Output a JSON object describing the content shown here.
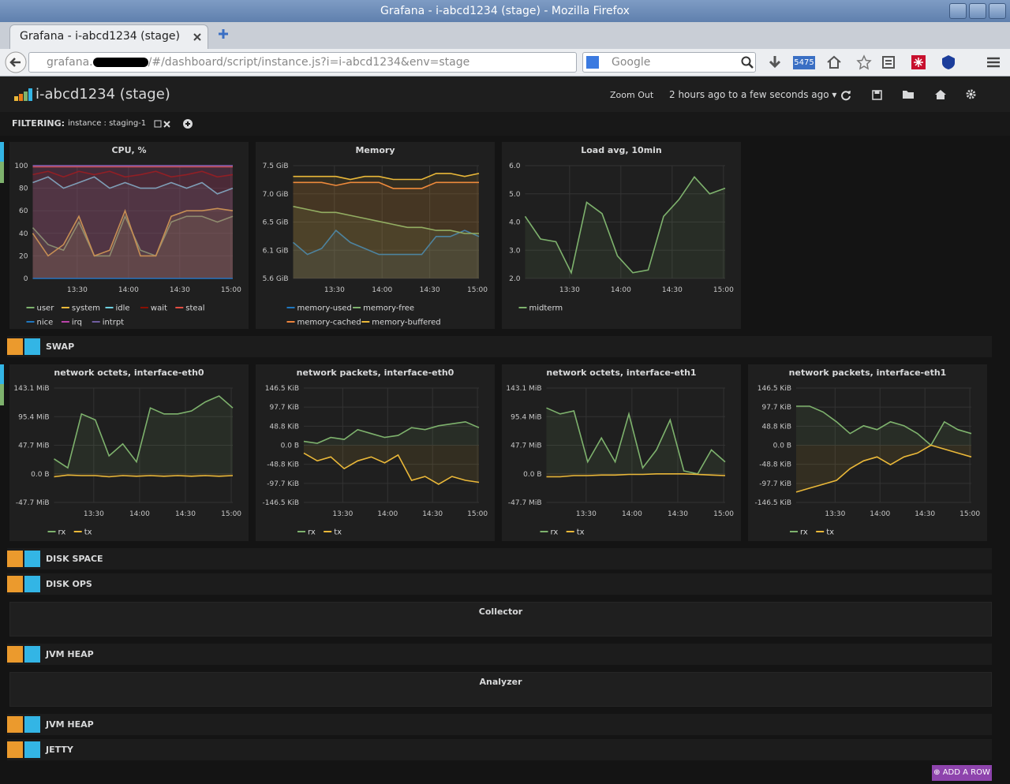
{
  "window": {
    "title": "Grafana - i-abcd1234 (stage) - Mozilla Firefox"
  },
  "tab": {
    "title": "Grafana - i-abcd1234 (stage)"
  },
  "url": {
    "host": "grafana.",
    "path": "/#/dashboard/script/instance.js?i=i-abcd1234&env=stage"
  },
  "search": {
    "placeholder": "Google"
  },
  "toolbar": {
    "badge": "5475"
  },
  "dashboard": {
    "title": "i-abcd1234 (stage)",
    "zoom_out": "Zoom Out",
    "time_range": "2 hours ago to a few seconds ago",
    "filtering": {
      "label": "FILTERING:",
      "tag": "instance : staging-1"
    },
    "add_row": "ADD A ROW"
  },
  "rows": [
    {
      "panels": [
        {
          "type": "line",
          "title": "CPU, %",
          "x": [
            "13:04",
            "13:13",
            "13:22",
            "13:31",
            "13:40",
            "13:49",
            "13:58",
            "14:07",
            "14:16",
            "14:25",
            "14:34",
            "14:43",
            "14:52",
            "15:01"
          ],
          "xlim": [
            "13:04",
            "15:01"
          ],
          "xticks": [
            "13:30",
            "14:00",
            "14:30",
            "15:00"
          ],
          "ylim": [
            0,
            100
          ],
          "yticks": [
            100,
            80,
            60,
            40,
            20,
            0
          ],
          "grid": true,
          "series": [
            {
              "name": "user",
              "color": "#7eb26d",
              "values": [
                45,
                30,
                25,
                50,
                20,
                20,
                55,
                25,
                20,
                50,
                55,
                55,
                50,
                55
              ]
            },
            {
              "name": "system",
              "color": "#eab839",
              "values": [
                40,
                20,
                30,
                55,
                20,
                25,
                60,
                20,
                20,
                55,
                60,
                60,
                62,
                60
              ]
            },
            {
              "name": "idle",
              "color": "#6ed0e0",
              "values": [
                85,
                90,
                80,
                85,
                90,
                80,
                85,
                80,
                80,
                85,
                80,
                85,
                75,
                80
              ]
            },
            {
              "name": "wait",
              "color": "#890f02",
              "values": [
                92,
                95,
                90,
                95,
                92,
                95,
                90,
                92,
                95,
                90,
                92,
                95,
                90,
                92
              ]
            },
            {
              "name": "steal",
              "color": "#e24d42",
              "values": [
                99,
                99,
                99,
                99,
                99,
                99,
                99,
                99,
                99,
                99,
                99,
                99,
                99,
                99
              ]
            },
            {
              "name": "nice",
              "color": "#1f78c1",
              "values": [
                0,
                0,
                0,
                0,
                0,
                0,
                0,
                0,
                0,
                0,
                0,
                0,
                0,
                0
              ]
            },
            {
              "name": "irq",
              "color": "#ba43a9",
              "values": [
                100,
                100,
                100,
                100,
                100,
                100,
                100,
                100,
                100,
                100,
                100,
                100,
                100,
                100
              ]
            },
            {
              "name": "intrpt",
              "color": "#705da0",
              "values": [
                100,
                100,
                100,
                100,
                100,
                100,
                100,
                100,
                100,
                100,
                100,
                100,
                100,
                100
              ]
            }
          ]
        },
        {
          "type": "line",
          "title": "Memory",
          "x": [
            "13:04",
            "13:13",
            "13:22",
            "13:31",
            "13:40",
            "13:49",
            "13:58",
            "14:07",
            "14:16",
            "14:25",
            "14:34",
            "14:43",
            "14:52",
            "15:01"
          ],
          "xlim": [
            "13:04",
            "15:01"
          ],
          "xticks": [
            "13:30",
            "14:00",
            "14:30",
            "15:00"
          ],
          "ylim": [
            5.6,
            7.48
          ],
          "grid": true,
          "yticks": [
            {
              "value": 7.48,
              "label": "7.5 GiB"
            },
            {
              "value": 7.01,
              "label": "7.0 GiB"
            },
            {
              "value": 6.54,
              "label": "6.5 GiB"
            },
            {
              "value": 6.07,
              "label": "6.1 GiB"
            },
            {
              "value": 5.6,
              "label": "5.6 GiB"
            }
          ],
          "series": [
            {
              "name": "memory-used",
              "color": "#1f78c1",
              "values": [
                6.2,
                6.0,
                6.1,
                6.4,
                6.2,
                6.1,
                6.0,
                6.0,
                6.0,
                6.0,
                6.3,
                6.3,
                6.4,
                6.3
              ]
            },
            {
              "name": "memory-free",
              "color": "#7eb26d",
              "values": [
                6.8,
                6.75,
                6.7,
                6.7,
                6.65,
                6.6,
                6.55,
                6.5,
                6.45,
                6.45,
                6.4,
                6.4,
                6.35,
                6.35
              ]
            },
            {
              "name": "memory-cached",
              "color": "#ef843c",
              "values": [
                7.2,
                7.2,
                7.2,
                7.15,
                7.2,
                7.2,
                7.2,
                7.1,
                7.1,
                7.1,
                7.2,
                7.2,
                7.2,
                7.2
              ]
            },
            {
              "name": "memory-buffered",
              "color": "#eab839",
              "values": [
                7.3,
                7.3,
                7.3,
                7.3,
                7.25,
                7.3,
                7.3,
                7.25,
                7.25,
                7.25,
                7.35,
                7.35,
                7.3,
                7.35
              ]
            }
          ]
        },
        {
          "type": "line",
          "title": "Load avg, 10min",
          "x": [
            "13:04",
            "13:13",
            "13:22",
            "13:31",
            "13:40",
            "13:49",
            "13:58",
            "14:07",
            "14:16",
            "14:25",
            "14:34",
            "14:43",
            "14:52",
            "15:01"
          ],
          "xlim": [
            "13:04",
            "15:01"
          ],
          "xticks": [
            "13:30",
            "14:00",
            "14:30",
            "15:00"
          ],
          "ylim": [
            2,
            6
          ],
          "grid": true,
          "yticks": [
            {
              "value": 6,
              "label": "6.0"
            },
            {
              "value": 5,
              "label": "5.0"
            },
            {
              "value": 4,
              "label": "4.0"
            },
            {
              "value": 3,
              "label": "3.0"
            },
            {
              "value": 2,
              "label": "2.0"
            }
          ],
          "series": [
            {
              "name": "midterm",
              "color": "#7eb26d",
              "values": [
                4.2,
                3.4,
                3.3,
                2.2,
                4.7,
                4.3,
                2.8,
                2.2,
                2.3,
                4.2,
                4.8,
                5.6,
                5.0,
                5.2
              ]
            }
          ]
        }
      ]
    },
    {
      "title": "SWAP"
    },
    {
      "panels": [
        {
          "type": "line",
          "title": "network octets, interface-eth0",
          "x": [
            "13:04",
            "13:13",
            "13:22",
            "13:31",
            "13:40",
            "13:49",
            "13:58",
            "14:07",
            "14:16",
            "14:25",
            "14:34",
            "14:43",
            "14:52",
            "15:01"
          ],
          "xlim": [
            "13:04",
            "15:01"
          ],
          "xticks": [
            "13:30",
            "14:00",
            "14:30",
            "15:00"
          ],
          "ylim": [
            -47.7,
            143.1
          ],
          "grid": true,
          "yticks": [
            {
              "value": 143.1,
              "label": "143.1 MiB"
            },
            {
              "value": 95.4,
              "label": "95.4 MiB"
            },
            {
              "value": 47.7,
              "label": "47.7 MiB"
            },
            {
              "value": 0,
              "label": "0.0 B"
            },
            {
              "value": -47.7,
              "label": "-47.7 MiB"
            }
          ],
          "series": [
            {
              "name": "rx",
              "color": "#7eb26d",
              "values": [
                25,
                10,
                100,
                90,
                30,
                50,
                20,
                110,
                100,
                100,
                105,
                120,
                130,
                110
              ]
            },
            {
              "name": "tx",
              "color": "#eab839",
              "values": [
                -5,
                -2,
                -3,
                -3,
                -5,
                -3,
                -4,
                -3,
                -4,
                -3,
                -4,
                -3,
                -4,
                -3
              ]
            }
          ]
        },
        {
          "type": "line",
          "title": "network packets, interface-eth0",
          "x": [
            "13:04",
            "13:13",
            "13:22",
            "13:31",
            "13:40",
            "13:49",
            "13:58",
            "14:07",
            "14:16",
            "14:25",
            "14:34",
            "14:43",
            "14:52",
            "15:01"
          ],
          "xlim": [
            "13:04",
            "15:01"
          ],
          "xticks": [
            "13:30",
            "14:00",
            "14:30",
            "15:00"
          ],
          "ylim": [
            -146.5,
            146.5
          ],
          "grid": true,
          "yticks": [
            {
              "value": 146.5,
              "label": "146.5 KiB"
            },
            {
              "value": 97.7,
              "label": "97.7 KiB"
            },
            {
              "value": 48.8,
              "label": "48.8 KiB"
            },
            {
              "value": 0,
              "label": "0.0 B"
            },
            {
              "value": -48.8,
              "label": "-48.8 KiB"
            },
            {
              "value": -97.7,
              "label": "-97.7 KiB"
            },
            {
              "value": -146.5,
              "label": "-146.5 KiB"
            }
          ],
          "series": [
            {
              "name": "rx",
              "color": "#7eb26d",
              "values": [
                10,
                5,
                20,
                15,
                40,
                30,
                20,
                25,
                45,
                40,
                50,
                55,
                60,
                45
              ]
            },
            {
              "name": "tx",
              "color": "#eab839",
              "values": [
                -20,
                -40,
                -30,
                -60,
                -40,
                -30,
                -45,
                -25,
                -90,
                -80,
                -100,
                -80,
                -90,
                -95
              ]
            }
          ]
        },
        {
          "type": "line",
          "title": "network octets, interface-eth1",
          "x": [
            "13:04",
            "13:13",
            "13:22",
            "13:31",
            "13:40",
            "13:49",
            "13:58",
            "14:07",
            "14:16",
            "14:25",
            "14:34",
            "14:43",
            "14:52",
            "15:01"
          ],
          "xlim": [
            "13:04",
            "15:01"
          ],
          "xticks": [
            "13:30",
            "14:00",
            "14:30",
            "15:00"
          ],
          "ylim": [
            -47.7,
            143.1
          ],
          "grid": true,
          "yticks": [
            {
              "value": 143.1,
              "label": "143.1 MiB"
            },
            {
              "value": 95.4,
              "label": "95.4 MiB"
            },
            {
              "value": 47.7,
              "label": "47.7 MiB"
            },
            {
              "value": 0,
              "label": "0.0 B"
            },
            {
              "value": -47.7,
              "label": "-47.7 MiB"
            }
          ],
          "series": [
            {
              "name": "rx",
              "color": "#7eb26d",
              "values": [
                110,
                100,
                105,
                20,
                60,
                20,
                100,
                10,
                40,
                90,
                5,
                0,
                40,
                20
              ]
            },
            {
              "name": "tx",
              "color": "#eab839",
              "values": [
                -5,
                -5,
                -3,
                -3,
                -2,
                -2,
                -1,
                -1,
                0,
                0,
                0,
                -1,
                -2,
                -3
              ]
            }
          ]
        },
        {
          "type": "line",
          "title": "network packets, interface-eth1",
          "x": [
            "13:04",
            "13:13",
            "13:22",
            "13:31",
            "13:40",
            "13:49",
            "13:58",
            "14:07",
            "14:16",
            "14:25",
            "14:34",
            "14:43",
            "14:52",
            "15:01"
          ],
          "xlim": [
            "13:04",
            "15:01"
          ],
          "xticks": [
            "13:30",
            "14:00",
            "14:30",
            "15:00"
          ],
          "ylim": [
            -146.5,
            146.5
          ],
          "grid": true,
          "yticks": [
            {
              "value": 146.5,
              "label": "146.5 KiB"
            },
            {
              "value": 97.7,
              "label": "97.7 KiB"
            },
            {
              "value": 48.8,
              "label": "48.8 KiB"
            },
            {
              "value": 0,
              "label": "0.0 B"
            },
            {
              "value": -48.8,
              "label": "-48.8 KiB"
            },
            {
              "value": -97.7,
              "label": "-97.7 KiB"
            },
            {
              "value": -146.5,
              "label": "-146.5 KiB"
            }
          ],
          "series": [
            {
              "name": "rx",
              "color": "#7eb26d",
              "values": [
                100,
                100,
                85,
                60,
                30,
                50,
                40,
                60,
                50,
                30,
                0,
                60,
                40,
                30
              ]
            },
            {
              "name": "tx",
              "color": "#eab839",
              "values": [
                -120,
                -110,
                -100,
                -90,
                -60,
                -40,
                -30,
                -50,
                -30,
                -20,
                0,
                -10,
                -20,
                -30
              ]
            }
          ]
        }
      ]
    },
    {
      "title": "DISK SPACE"
    },
    {
      "title": "DISK OPS"
    },
    {
      "text": "Collector"
    },
    {
      "title": "JVM HEAP"
    },
    {
      "text": "Analyzer"
    },
    {
      "title": "JVM HEAP"
    },
    {
      "title": "JETTY"
    }
  ]
}
